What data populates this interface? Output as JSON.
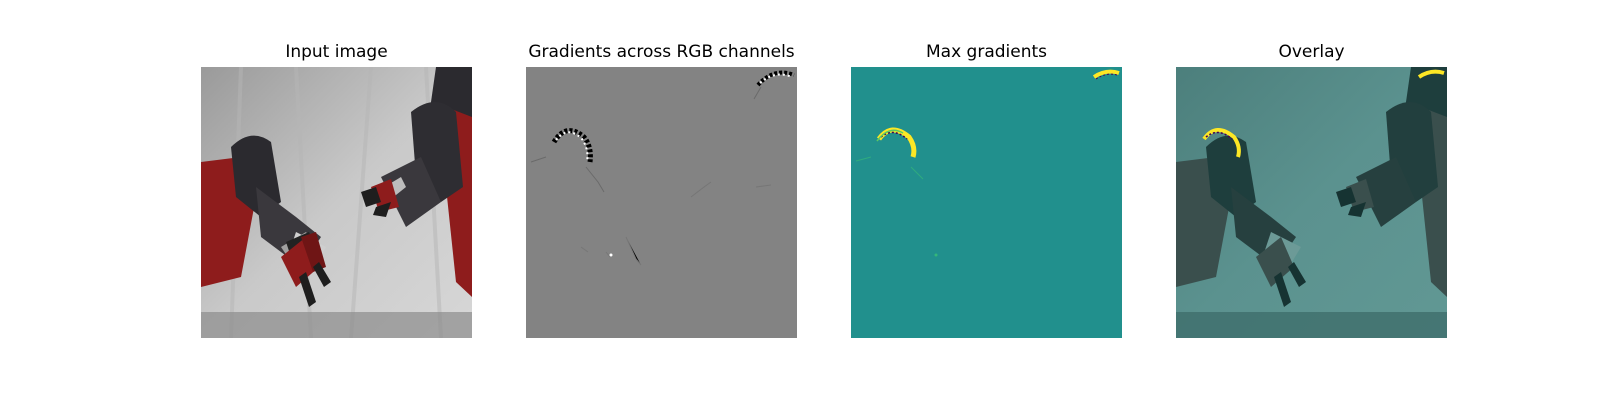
{
  "panels": [
    {
      "title": "Input image"
    },
    {
      "title": "Gradients across RGB channels"
    },
    {
      "title": "Max gradients"
    },
    {
      "title": "Overlay"
    }
  ],
  "colors": {
    "background": "#ffffff",
    "gradient_gray": "#838383",
    "viridis_teal": "#21908d",
    "viridis_yellow": "#fde725",
    "robot_red": "#8e1c1c",
    "robot_dark": "#2b2a2f"
  }
}
